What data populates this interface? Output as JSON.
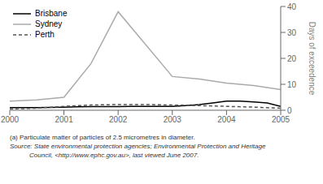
{
  "chart_data": {
    "type": "line",
    "ylabel": "Days of exceedence",
    "xlim": [
      2000,
      2005
    ],
    "xticks": [
      2000,
      2001,
      2002,
      2003,
      2004,
      2005
    ],
    "ylim": [
      0,
      40
    ],
    "yticks": [
      0,
      10,
      20,
      30,
      40
    ],
    "grid": false,
    "legend": "upper left",
    "series": [
      {
        "name": "Brisbane",
        "color": "#000000",
        "line_style": "solid",
        "x": [
          2000,
          2000.25,
          2000.5,
          2000.75,
          2001,
          2001.25,
          2001.5,
          2001.75,
          2002,
          2002.25,
          2002.5,
          2002.75,
          2003,
          2003.25,
          2003.5,
          2003.75,
          2004,
          2004.25,
          2004.5,
          2004.75,
          2005
        ],
        "values": [
          1.0,
          1.0,
          1.0,
          1.1,
          1.2,
          1.3,
          1.4,
          1.4,
          1.4,
          1.5,
          1.5,
          1.5,
          1.5,
          1.8,
          2.2,
          2.8,
          3.5,
          3.5,
          3.2,
          2.8,
          1.5
        ]
      },
      {
        "name": "Sydney",
        "color": "#aaaaaa",
        "line_style": "solid",
        "x": [
          2000,
          2000.5,
          2001,
          2001.5,
          2002,
          2003,
          2003.5,
          2004,
          2004.5,
          2005
        ],
        "values": [
          3.5,
          4.0,
          5.0,
          18.0,
          38.0,
          13.0,
          12.0,
          10.5,
          9.5,
          8.0
        ]
      },
      {
        "name": "Perth",
        "color": "#555555",
        "line_style": "dashed",
        "x": [
          2000,
          2000.5,
          2001,
          2001.5,
          2002,
          2002.5,
          2003,
          2003.5,
          2004,
          2004.5,
          2005
        ],
        "values": [
          0.5,
          0.8,
          1.5,
          2.0,
          2.2,
          2.2,
          2.0,
          1.8,
          1.5,
          1.2,
          0.8
        ]
      }
    ],
    "annotations": [
      "(a) Particulate matter of particles of 2.5 micrometres in diameter.",
      "Source: State environmental protection agencies; Environmental Protection and Heritage",
      "Council, <http://www.ephc.gov.au>, last viewed June 2007."
    ]
  }
}
